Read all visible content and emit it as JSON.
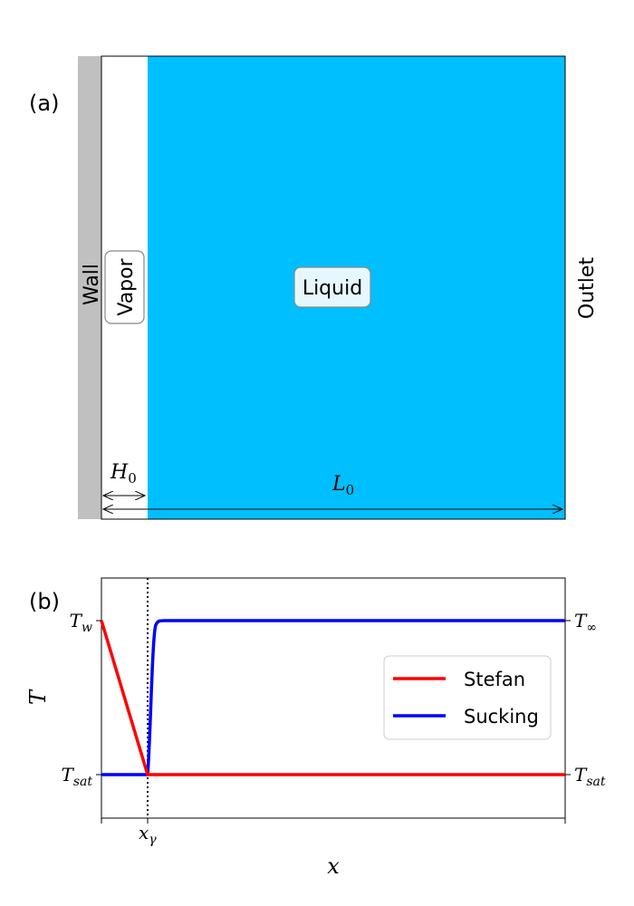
{
  "panel_a": {
    "label": "(a)",
    "wall_label": "Wall",
    "vapor_label": "Vapor",
    "liquid_label": "Liquid",
    "outlet_label": "Outlet",
    "h0_label": "H",
    "h0_sub": "0",
    "l0_label": "L",
    "l0_sub": "0",
    "colors": {
      "wall": "#c0c0c0",
      "vapor": "#ffffff",
      "liquid": "#00bfff",
      "label_box": "#e6f7ff"
    }
  },
  "panel_b": {
    "label": "(b)",
    "ylabel": "T",
    "xlabel": "x",
    "left_ticks": [
      {
        "main": "T",
        "sub": "w"
      },
      {
        "main": "T",
        "sub": "sat"
      }
    ],
    "right_ticks": [
      {
        "main": "T",
        "sub": "∞"
      },
      {
        "main": "T",
        "sub": "sat"
      }
    ],
    "x_tick": {
      "main": "x",
      "sub": "γ"
    },
    "legend": [
      {
        "name": "Stefan",
        "color": "#ff0000"
      },
      {
        "name": "Sucking",
        "color": "#0000ff"
      }
    ]
  }
}
